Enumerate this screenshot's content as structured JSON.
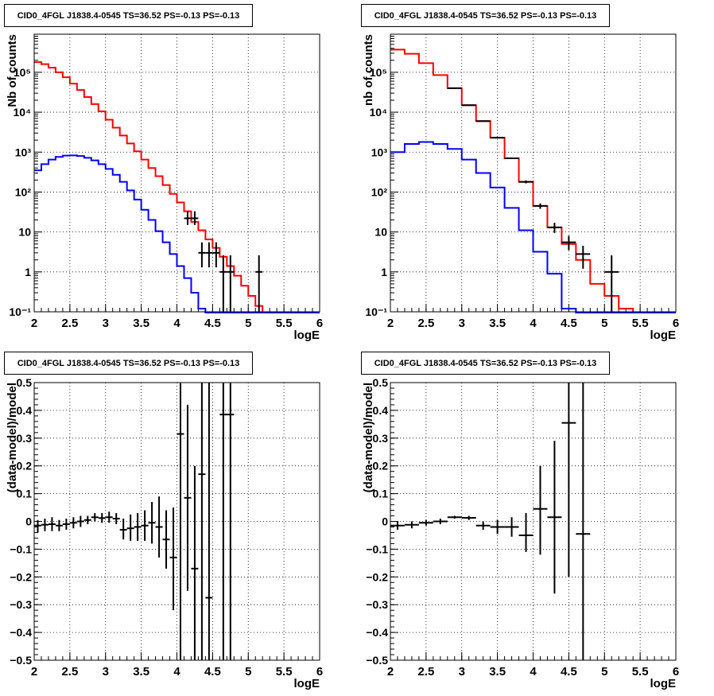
{
  "chart_data": [
    {
      "type": "line",
      "panel": "top-left",
      "title": "CID0_4FGL J1838.4-0545 TS=36.52 PS=-0.13 PS=-0.13",
      "xlabel": "logE",
      "ylabel": "Nb of counts",
      "xlim": [
        2,
        6
      ],
      "ylim": [
        0.1,
        900000
      ],
      "yscale": "log",
      "x_ticks": [
        "2",
        "2.5",
        "3",
        "3.5",
        "4",
        "4.5",
        "5",
        "5.5",
        "6"
      ],
      "y_ticks": [
        "10⁻¹",
        "1",
        "10",
        "10²",
        "10³",
        "10⁴",
        "10⁵"
      ],
      "grid": true,
      "bin_edges": [
        2.0,
        2.1,
        2.2,
        2.3,
        2.4,
        2.5,
        2.6,
        2.7,
        2.8,
        2.9,
        3.0,
        3.1,
        3.2,
        3.3,
        3.4,
        3.5,
        3.6,
        3.7,
        3.8,
        3.9,
        4.0,
        4.1,
        4.2,
        4.3,
        4.4,
        4.5,
        4.6,
        4.7,
        4.8,
        4.9,
        5.0,
        5.1,
        5.2,
        5.3,
        5.4,
        5.5,
        5.6,
        5.7,
        5.8,
        5.9,
        6.0
      ],
      "series": [
        {
          "kind": "model-total",
          "color": "#ff0000",
          "values": [
            180000,
            160000,
            130000,
            100000,
            75000,
            52000,
            36000,
            24000,
            16000,
            10500,
            6500,
            4100,
            2600,
            1650,
            1050,
            650,
            400,
            250,
            150,
            90,
            55,
            33,
            18,
            11,
            6.5,
            4,
            2.4,
            1.4,
            0.8,
            0.45,
            0.25,
            0.14,
            0.08,
            0.05,
            0.05,
            0.05,
            0.05,
            0.05,
            0.05,
            0.05
          ]
        },
        {
          "kind": "model-source",
          "color": "#0000ff",
          "values": [
            350,
            500,
            650,
            760,
            820,
            830,
            800,
            720,
            620,
            500,
            380,
            270,
            180,
            110,
            65,
            36,
            20,
            10.5,
            5.5,
            2.8,
            1.4,
            0.7,
            0.3,
            0.12,
            0.05,
            0.05,
            0.05,
            0.05,
            0.05,
            0.05,
            0.05,
            0.05,
            0.05,
            0.05,
            0.05,
            0.05,
            0.05,
            0.05,
            0.05,
            0.05
          ]
        }
      ],
      "data_points": {
        "color": "#000000",
        "x": [
          4.15,
          4.25,
          4.35,
          4.45,
          4.55,
          4.65,
          4.75,
          5.15
        ],
        "y": [
          22,
          22,
          3,
          3,
          3,
          1,
          1,
          1
        ],
        "xerr": 0.05,
        "ylo": [
          15,
          15,
          1.3,
          1.3,
          1.3,
          0.1,
          0.1,
          0.1
        ],
        "yhi": [
          33,
          33,
          5.5,
          5.5,
          5.5,
          2.6,
          2.6,
          2.6
        ]
      }
    },
    {
      "type": "line",
      "panel": "top-right",
      "title": "CID0_4FGL J1838.4-0545 TS=36.52 PS=-0.13 PS=-0.13",
      "xlabel": "logE",
      "ylabel": "nb of counts",
      "xlim": [
        2,
        6
      ],
      "ylim": [
        0.1,
        900000
      ],
      "yscale": "log",
      "x_ticks": [
        "2",
        "2.5",
        "3",
        "3.5",
        "4",
        "4.5",
        "5",
        "5.5",
        "6"
      ],
      "y_ticks": [
        "10⁻¹",
        "1",
        "10",
        "10²",
        "10³",
        "10⁴",
        "10⁵"
      ],
      "grid": true,
      "bin_edges": [
        2.0,
        2.2,
        2.4,
        2.6,
        2.8,
        3.0,
        3.2,
        3.4,
        3.6,
        3.8,
        4.0,
        4.2,
        4.4,
        4.6,
        4.8,
        5.0,
        5.2,
        5.4,
        5.6,
        5.8,
        6.0
      ],
      "series": [
        {
          "kind": "model-total",
          "color": "#ff0000",
          "values": [
            370000,
            290000,
            170000,
            85000,
            40000,
            15000,
            6000,
            2300,
            700,
            180,
            45,
            13,
            5,
            2,
            0.5,
            0.25,
            0.12,
            0.05,
            0.05,
            0.05
          ]
        },
        {
          "kind": "model-source",
          "color": "#0000ff",
          "values": [
            1000,
            1600,
            1800,
            1600,
            1200,
            650,
            300,
            130,
            40,
            11,
            3.2,
            0.9,
            0.12,
            0.05,
            0.05,
            0.05,
            0.05,
            0.05,
            0.05,
            0.05
          ]
        }
      ],
      "data_points": {
        "color": "#000000",
        "x": [
          2.9,
          3.1,
          3.3,
          3.5,
          3.7,
          3.9,
          4.1,
          4.3,
          4.5,
          4.7,
          5.1
        ],
        "y": [
          40000,
          15000,
          6000,
          2300,
          700,
          180,
          45,
          13,
          5.5,
          2.8,
          1
        ],
        "xerr": 0.1,
        "ylo": [
          39500,
          14800,
          5900,
          2250,
          675,
          165,
          38,
          9.5,
          3.5,
          1.2,
          0.1
        ],
        "yhi": [
          40500,
          15200,
          6100,
          2350,
          725,
          195,
          52,
          17,
          8,
          4.5,
          2.6
        ]
      }
    },
    {
      "type": "scatter",
      "panel": "bottom-left",
      "title": "CID0_4FGL J1838.4-0545 TS=36.52 PS=-0.13 PS=-0.13",
      "xlabel": "logE",
      "ylabel": "(data-model)/model",
      "xlim": [
        2,
        6
      ],
      "ylim": [
        -0.5,
        0.5
      ],
      "x_ticks": [
        "2",
        "2.5",
        "3",
        "3.5",
        "4",
        "4.5",
        "5",
        "5.5",
        "6"
      ],
      "y_ticks": [
        "−0.5",
        "−0.4",
        "−0.3",
        "−0.2",
        "−0.1",
        "0",
        "0.1",
        "0.2",
        "0.3",
        "0.4",
        "0.5"
      ],
      "grid": true,
      "x": [
        2.05,
        2.15,
        2.25,
        2.35,
        2.45,
        2.55,
        2.65,
        2.75,
        2.85,
        2.95,
        3.05,
        3.15,
        3.25,
        3.35,
        3.45,
        3.55,
        3.65,
        3.75,
        3.85,
        3.95,
        4.05,
        4.15,
        4.25,
        4.35,
        4.45,
        4.65,
        4.75
      ],
      "y": [
        -0.015,
        -0.012,
        -0.01,
        -0.015,
        -0.01,
        -0.005,
        0.0,
        0.005,
        0.015,
        0.012,
        0.015,
        0.01,
        -0.03,
        -0.025,
        -0.02,
        -0.015,
        -0.005,
        -0.02,
        -0.065,
        -0.13,
        0.315,
        0.085,
        -0.17,
        0.17,
        -0.275,
        0.385,
        0.385
      ],
      "xerr": 0.05,
      "ylo": [
        -0.04,
        -0.035,
        -0.035,
        -0.035,
        -0.03,
        -0.025,
        -0.02,
        -0.01,
        0.0,
        -0.005,
        -0.005,
        -0.01,
        -0.065,
        -0.07,
        -0.07,
        -0.07,
        -0.08,
        -0.13,
        -0.17,
        -0.32,
        -0.5,
        -0.25,
        -0.5,
        -0.5,
        -0.5,
        -0.5,
        -0.5
      ],
      "yhi": [
        0.005,
        0.01,
        0.015,
        0.005,
        0.01,
        0.015,
        0.02,
        0.02,
        0.03,
        0.03,
        0.035,
        0.03,
        0.01,
        0.025,
        0.03,
        0.04,
        0.07,
        0.09,
        0.04,
        0.05,
        0.5,
        0.42,
        0.2,
        0.5,
        0.5,
        0.5,
        0.5
      ]
    },
    {
      "type": "scatter",
      "panel": "bottom-right",
      "title": "CID0_4FGL J1838.4-0545 TS=36.52 PS=-0.13 PS=-0.13",
      "xlabel": "logE",
      "ylabel": "(data-model)/model",
      "xlim": [
        2,
        6
      ],
      "ylim": [
        -0.5,
        0.5
      ],
      "x_ticks": [
        "2",
        "2.5",
        "3",
        "3.5",
        "4",
        "4.5",
        "5",
        "5.5",
        "6"
      ],
      "y_ticks": [
        "−0.5",
        "−0.4",
        "−0.3",
        "−0.2",
        "−0.1",
        "0",
        "0.1",
        "0.2",
        "0.3",
        "0.4",
        "0.5"
      ],
      "grid": true,
      "x": [
        2.1,
        2.3,
        2.5,
        2.7,
        2.9,
        3.1,
        3.3,
        3.5,
        3.7,
        3.9,
        4.1,
        4.3,
        4.5,
        4.7
      ],
      "y": [
        -0.015,
        -0.012,
        -0.005,
        0.0,
        0.015,
        0.013,
        -0.015,
        -0.02,
        -0.02,
        -0.05,
        0.045,
        0.015,
        0.355,
        -0.045
      ],
      "xerr": 0.1,
      "ylo": [
        -0.03,
        -0.025,
        -0.015,
        -0.01,
        0.01,
        0.005,
        -0.03,
        -0.045,
        -0.055,
        -0.11,
        -0.12,
        -0.26,
        -0.2,
        -0.5
      ],
      "yhi": [
        0.0,
        0.0,
        0.005,
        0.01,
        0.02,
        0.02,
        0.0,
        0.005,
        0.015,
        0.03,
        0.2,
        0.29,
        0.5,
        0.5
      ]
    }
  ]
}
